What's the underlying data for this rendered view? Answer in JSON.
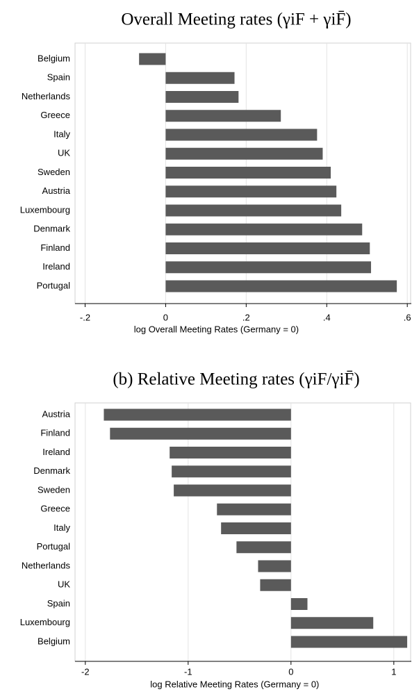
{
  "chart_data": [
    {
      "type": "barh",
      "title": "Overall Meeting rates (γiF + γiF̄)",
      "x_label": "log Overall Meeting Rates (Germany = 0)",
      "categories": [
        "Belgium",
        "Spain",
        "Netherlands",
        "Greece",
        "Italy",
        "UK",
        "Sweden",
        "Austria",
        "Luxembourg",
        "Denmark",
        "Finland",
        "Ireland",
        "Portugal"
      ],
      "values": [
        -0.066,
        0.171,
        0.181,
        0.286,
        0.376,
        0.39,
        0.41,
        0.424,
        0.436,
        0.488,
        0.507,
        0.51,
        0.574
      ],
      "color": "#5a5a5a",
      "xlim": [
        -0.225,
        0.61
      ],
      "xticks": [
        {
          "value": -0.2,
          "label": "-.2"
        },
        0,
        {
          "value": 0.2,
          "label": ".2"
        },
        {
          "value": 0.4,
          "label": ".4"
        },
        {
          "value": 0.6,
          "label": ".6"
        }
      ],
      "grid": true
    },
    {
      "type": "barh",
      "title": "(b) Relative Meeting rates (γiF/γiF̄)",
      "x_label": "log Relative Meeting Rates (Germany = 0)",
      "categories": [
        "Austria",
        "Finland",
        "Ireland",
        "Denmark",
        "Sweden",
        "Greece",
        "Italy",
        "Portugal",
        "Netherlands",
        "UK",
        "Spain",
        "Luxembourg",
        "Belgium"
      ],
      "values": [
        -1.82,
        -1.76,
        -1.18,
        -1.16,
        -1.14,
        -0.72,
        -0.68,
        -0.53,
        -0.32,
        -0.3,
        0.16,
        0.8,
        1.13
      ],
      "color": "#5a5a5a",
      "xlim": [
        -2.1,
        1.17
      ],
      "xticks": [
        -2,
        -1,
        0,
        1
      ],
      "grid": true
    }
  ]
}
